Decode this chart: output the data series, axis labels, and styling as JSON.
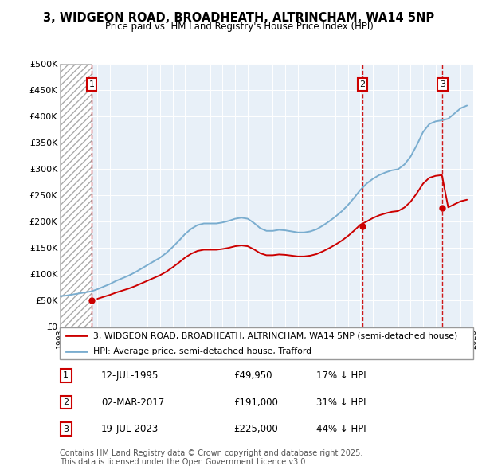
{
  "title": "3, WIDGEON ROAD, BROADHEATH, ALTRINCHAM, WA14 5NP",
  "subtitle": "Price paid vs. HM Land Registry's House Price Index (HPI)",
  "legend_line1": "3, WIDGEON ROAD, BROADHEATH, ALTRINCHAM, WA14 5NP (semi-detached house)",
  "legend_line2": "HPI: Average price, semi-detached house, Trafford",
  "sales": [
    {
      "num": 1,
      "date": 1995.54,
      "price": 49950,
      "label": "12-JUL-1995",
      "pct": "17% ↓ HPI"
    },
    {
      "num": 2,
      "date": 2017.17,
      "price": 191000,
      "label": "02-MAR-2017",
      "pct": "31% ↓ HPI"
    },
    {
      "num": 3,
      "date": 2023.54,
      "price": 225000,
      "label": "19-JUL-2023",
      "pct": "44% ↓ HPI"
    }
  ],
  "footer": "Contains HM Land Registry data © Crown copyright and database right 2025.\nThis data is licensed under the Open Government Licence v3.0.",
  "xmin": 1993,
  "xmax": 2026,
  "ymin": 0,
  "ymax": 500000,
  "price_color": "#cc0000",
  "hpi_color": "#7aadcf",
  "hatch_color": "#cccccc",
  "plot_bg": "#e8f0f8"
}
